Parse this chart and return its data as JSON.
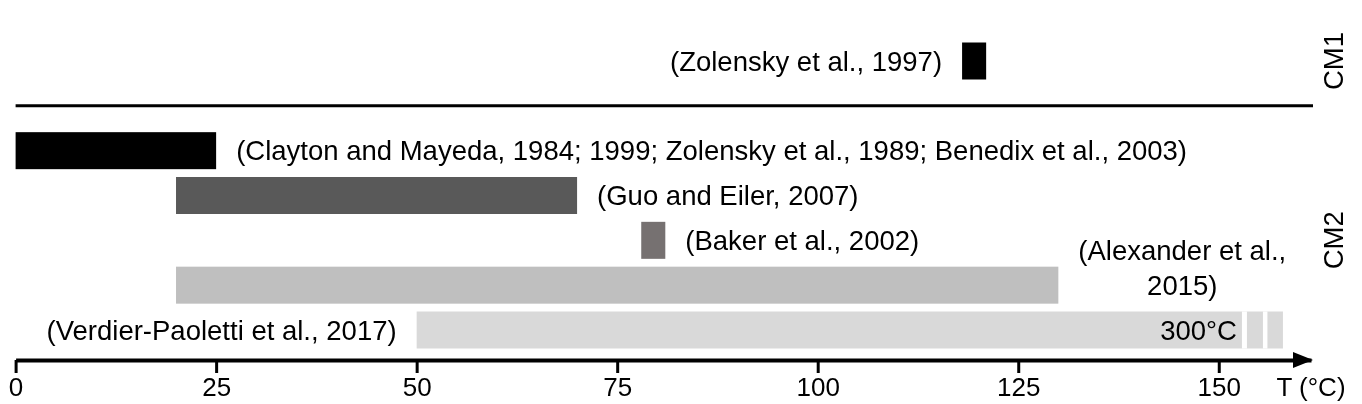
{
  "chart_data": {
    "type": "bar",
    "orientation": "horizontal",
    "categories": [
      "(Zolensky et al., 1997)",
      null,
      "(Clayton and Mayeda, 1984; 1999; Zolensky et al., 1989; Benedix et al., 2003)",
      "(Guo and Eiler, 2007)",
      "(Baker et al., 2002)",
      "(Alexander et al., 2015)",
      "(Verdier-Paoletti et al., 2017)"
    ],
    "base": [
      118,
      null,
      0,
      20,
      78,
      20,
      50
    ],
    "values": [
      3,
      null,
      25,
      50,
      3,
      110,
      108
    ],
    "colors": [
      "#000000",
      null,
      "#000000",
      "#595959",
      "#767171",
      "#bfbfbf",
      "#d9d9d9"
    ],
    "xlim": [
      0,
      161.5
    ],
    "xticks": [
      0,
      25,
      50,
      75,
      100,
      125,
      150
    ],
    "xlabel": "T (°C)",
    "annotations": [
      "CM1",
      "CM2",
      "300°C"
    ]
  }
}
